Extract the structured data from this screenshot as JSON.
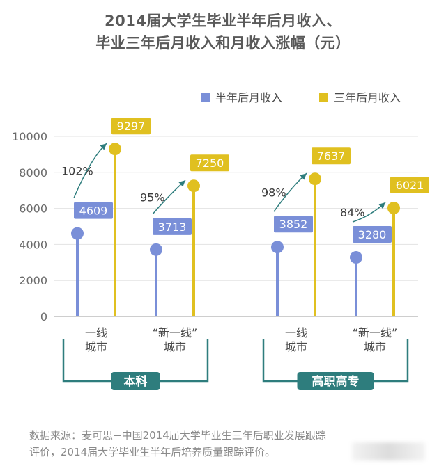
{
  "title": {
    "line1": "2014届大学生毕业半年后月收入、",
    "line2": "毕业三年后月收入和月收入涨幅（元）"
  },
  "legend": [
    {
      "label": "半年后月收入",
      "color": "#7a8fd8"
    },
    {
      "label": "三年后月收入",
      "color": "#e0c020"
    }
  ],
  "colors": {
    "half_year": "#7a8fd8",
    "three_year": "#e0c020",
    "bracket": "#2e7d7d",
    "arrow": "#2e7d7d"
  },
  "chart_data": {
    "type": "bar",
    "style": "lollipop",
    "ylim": [
      0,
      10000
    ],
    "yticks": [
      "0",
      "2000",
      "4000",
      "6000",
      "8000",
      "10000"
    ],
    "grid": true,
    "legend_position": "top-right",
    "categories": [
      "一线城市",
      "“新一线”城市",
      "一线城市",
      "“新一线”城市"
    ],
    "category_lines": [
      [
        "一线",
        "城市"
      ],
      [
        "“新一线”",
        "城市"
      ],
      [
        "一线",
        "城市"
      ],
      [
        "“新一线”",
        "城市"
      ]
    ],
    "groups": [
      {
        "label": "本科",
        "categories": [
          0,
          1
        ]
      },
      {
        "label": "高职高专",
        "categories": [
          2,
          3
        ]
      }
    ],
    "series": [
      {
        "name": "半年后月收入",
        "values": [
          4609,
          3713,
          3852,
          3280
        ]
      },
      {
        "name": "三年后月收入",
        "values": [
          9297,
          7250,
          7637,
          6021
        ]
      }
    ],
    "growth_labels": [
      "102%",
      "95%",
      "98%",
      "84%"
    ]
  },
  "source": {
    "line1": "数据来源：麦可思−中国2014届大学毕业生三年后职业发展跟踪",
    "line2": "评价，2014届大学毕业生半年后培养质量跟踪评价。"
  }
}
